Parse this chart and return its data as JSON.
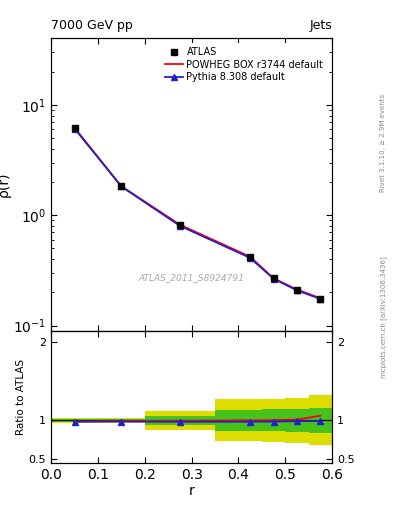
{
  "title": "7000 GeV pp",
  "title_right": "Jets",
  "ylabel_main": "ρ(r)",
  "ylabel_ratio": "Ratio to ATLAS",
  "xlabel": "r",
  "watermark": "ATLAS_2011_S8924791",
  "rivet_label": "Rivet 3.1.10, ≥ 2.9M events",
  "arxiv_label": "mcplots.cern.ch [arXiv:1306.3436]",
  "x_data": [
    0.05,
    0.15,
    0.275,
    0.425,
    0.475,
    0.525,
    0.575
  ],
  "atlas_y": [
    6.2,
    1.85,
    0.82,
    0.42,
    0.27,
    0.21,
    0.175
  ],
  "powheg_y": [
    6.2,
    1.83,
    0.82,
    0.42,
    0.268,
    0.212,
    0.177
  ],
  "pythia_y": [
    6.1,
    1.82,
    0.8,
    0.41,
    0.265,
    0.208,
    0.174
  ],
  "ratio_powheg": [
    0.985,
    0.992,
    0.995,
    1.0,
    1.003,
    1.01,
    1.06
  ],
  "ratio_pythia": [
    0.985,
    0.985,
    0.982,
    0.983,
    0.985,
    0.99,
    0.993
  ],
  "band_x_edges": [
    0.0,
    0.1,
    0.2,
    0.35,
    0.45,
    0.5,
    0.55,
    0.6
  ],
  "yellow_band_lo": [
    0.97,
    0.97,
    0.88,
    0.73,
    0.72,
    0.71,
    0.68
  ],
  "yellow_band_hi": [
    1.03,
    1.03,
    1.12,
    1.27,
    1.28,
    1.29,
    1.32
  ],
  "green_band_lo": [
    0.985,
    0.985,
    0.94,
    0.865,
    0.86,
    0.855,
    0.84
  ],
  "green_band_hi": [
    1.015,
    1.015,
    1.06,
    1.135,
    1.14,
    1.145,
    1.16
  ],
  "xlim": [
    0.0,
    0.6
  ],
  "ylim_main_log": [
    0.09,
    40
  ],
  "ylim_ratio": [
    0.45,
    2.15
  ],
  "atlas_color": "black",
  "powheg_color": "#ff0000",
  "pythia_color": "#2222cc",
  "yellow_color": "#dddd00",
  "green_color": "#22bb22",
  "bg_color": "#ffffff"
}
